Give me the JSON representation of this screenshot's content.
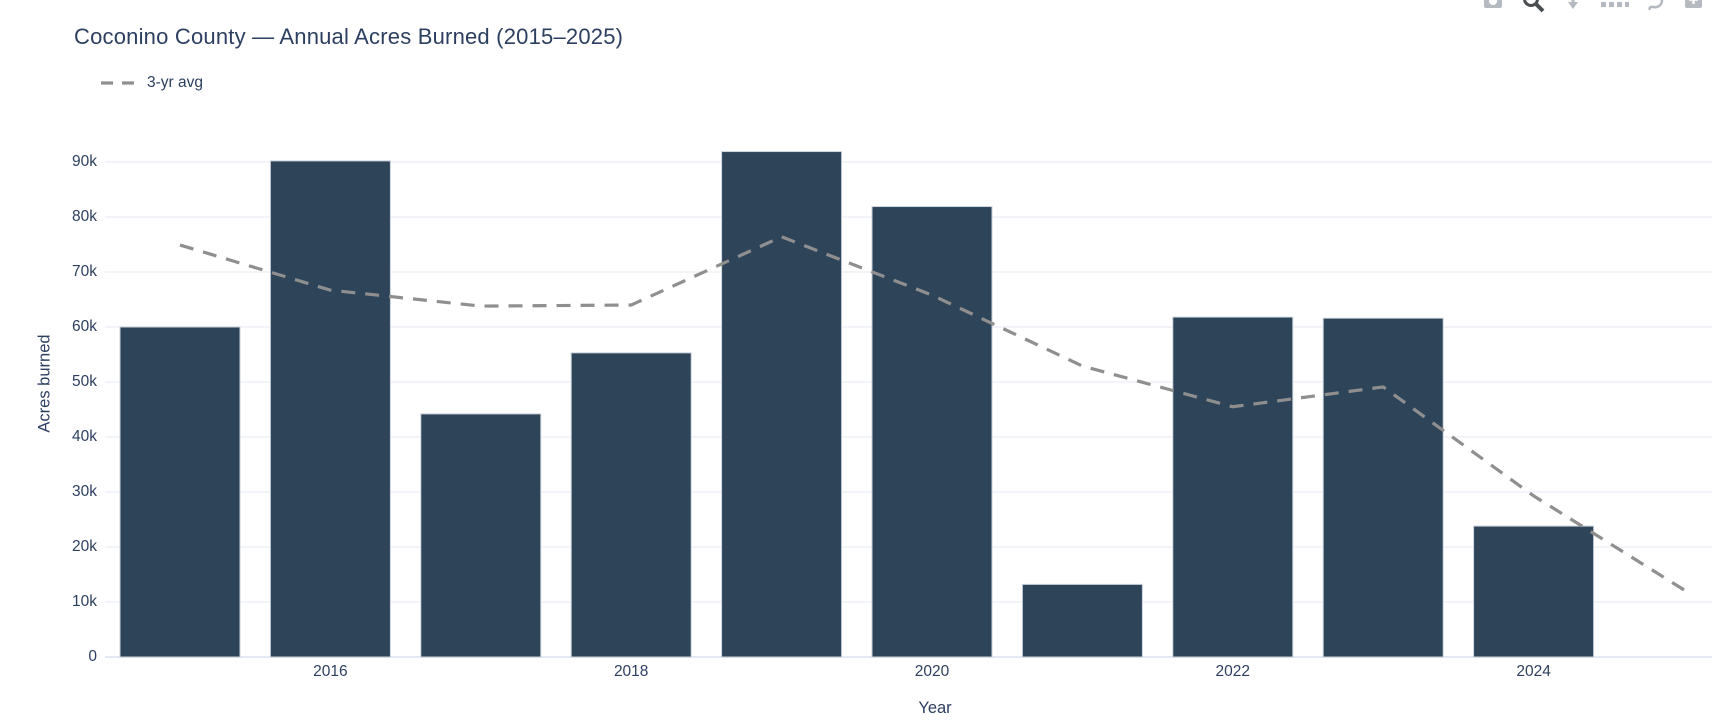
{
  "header": {
    "title": "Coconino County — Annual Acres Burned (2015–2025)"
  },
  "legend": {
    "items": [
      {
        "label": "3-yr avg",
        "marker": "dashed-line",
        "color": "#8f8f8f"
      }
    ]
  },
  "modebar": {
    "icons": [
      "camera-icon",
      "zoom-icon",
      "pan-icon",
      "box-select-icon",
      "lasso-icon",
      "zoom-in-icon"
    ]
  },
  "axes": {
    "x_title": "Year",
    "y_title": "Acres burned",
    "x_tick_labels": [
      "2016",
      "2018",
      "2020",
      "2022",
      "2024"
    ],
    "y_tick_labels": [
      "0",
      "10k",
      "20k",
      "30k",
      "40k",
      "50k",
      "60k",
      "70k",
      "80k",
      "90k"
    ]
  },
  "colors": {
    "bar_fill": "#2e4459",
    "bar_edge": "#c9d2db",
    "avg_line": "#8f8f8f",
    "grid": "#e9edf7",
    "zero_line": "#e4e9f3",
    "text": "#2c3f60"
  },
  "chart_data": {
    "type": "bar",
    "title": "Coconino County — Annual Acres Burned (2015–2025)",
    "xlabel": "Year",
    "ylabel": "Acres burned",
    "grid": true,
    "legend_position": "top-left",
    "xlim": [
      2014.5,
      2025.7
    ],
    "ylim": [
      0,
      99500
    ],
    "ytick_values": [
      0,
      10000,
      20000,
      30000,
      40000,
      50000,
      60000,
      70000,
      80000,
      90000
    ],
    "xtick_values": [
      2016,
      2018,
      2020,
      2022,
      2024
    ],
    "categories": [
      2015,
      2016,
      2017,
      2018,
      2019,
      2020,
      2021,
      2022,
      2023,
      2024
    ],
    "series": [
      {
        "name": "Acres burned",
        "type": "bar",
        "x": [
          2015,
          2016,
          2017,
          2018,
          2019,
          2020,
          2021,
          2022,
          2023,
          2024
        ],
        "values": [
          60000,
          90200,
          44200,
          55300,
          91900,
          81900,
          13200,
          61800,
          61600,
          23800
        ]
      },
      {
        "name": "3-yr avg",
        "type": "line",
        "dashed": true,
        "x": [
          2015,
          2016,
          2017,
          2018,
          2019,
          2020,
          2021,
          2022,
          2023,
          2024,
          2025
        ],
        "values": [
          74900,
          66700,
          63800,
          64000,
          76400,
          65800,
          52900,
          45500,
          49100,
          29300,
          12200
        ]
      }
    ]
  }
}
